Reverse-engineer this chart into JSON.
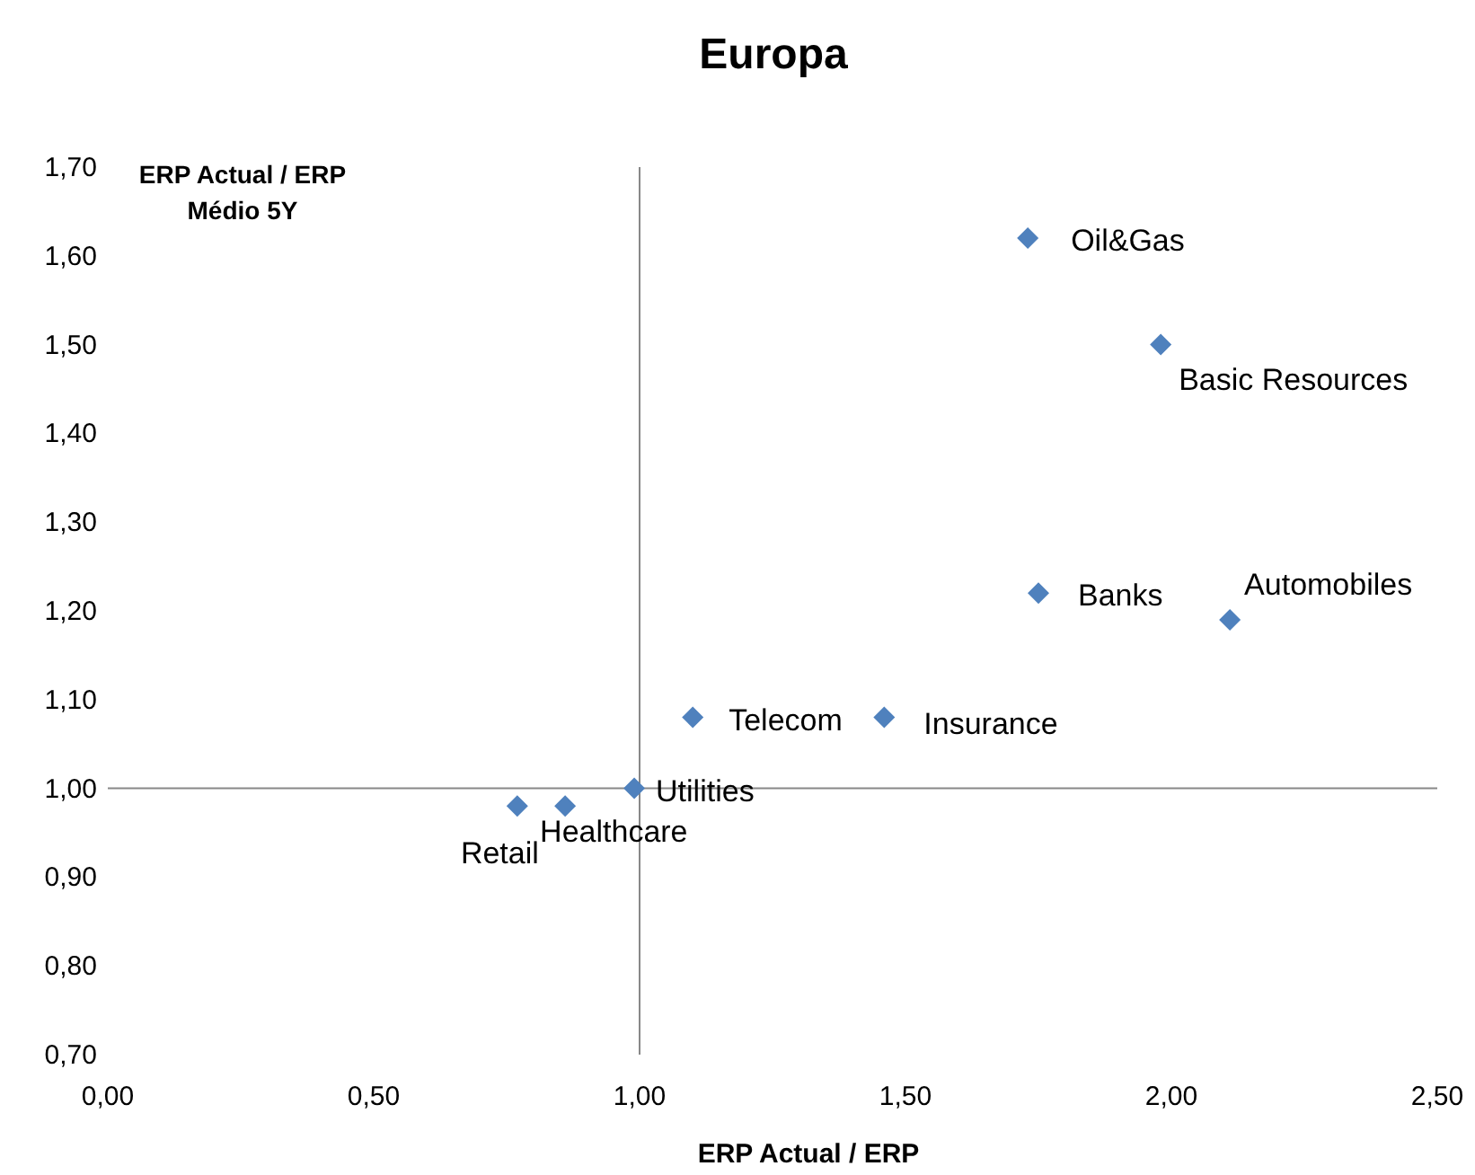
{
  "chart_data": {
    "type": "scatter",
    "title": "Europa",
    "xlabel": "ERP Actual / ERP",
    "ylabel": "ERP Actual / ERP Médio 5Y",
    "xlim": [
      0,
      2.5
    ],
    "ylim": [
      0.7,
      1.7
    ],
    "xticks": [
      {
        "value": 0,
        "label": "0,00"
      },
      {
        "value": 0.5,
        "label": "0,50"
      },
      {
        "value": 1,
        "label": "1,00"
      },
      {
        "value": 1.5,
        "label": "1,50"
      },
      {
        "value": 2,
        "label": "2,00"
      },
      {
        "value": 2.5,
        "label": "2,50"
      }
    ],
    "yticks": [
      {
        "value": 0.7,
        "label": "0,70"
      },
      {
        "value": 0.8,
        "label": "0,80"
      },
      {
        "value": 0.9,
        "label": "0,90"
      },
      {
        "value": 1,
        "label": "1,00"
      },
      {
        "value": 1.1,
        "label": "1,10"
      },
      {
        "value": 1.2,
        "label": "1,20"
      },
      {
        "value": 1.3,
        "label": "1,30"
      },
      {
        "value": 1.4,
        "label": "1,40"
      },
      {
        "value": 1.5,
        "label": "1,50"
      },
      {
        "value": 1.6,
        "label": "1,60"
      },
      {
        "value": 1.7,
        "label": "1,70"
      }
    ],
    "marker": "diamond",
    "series": [
      {
        "name": "Oil&Gas",
        "color": "#4f81bd",
        "x": [
          1.73
        ],
        "values": [
          1.62
        ]
      },
      {
        "name": "Basic Resources",
        "color": "#4f81bd",
        "x": [
          1.98
        ],
        "values": [
          1.5
        ]
      },
      {
        "name": "Banks",
        "color": "#4f81bd",
        "x": [
          1.75
        ],
        "values": [
          1.22
        ]
      },
      {
        "name": "Automobiles",
        "color": "#4f81bd",
        "x": [
          2.11
        ],
        "values": [
          1.19
        ]
      },
      {
        "name": "Telecom",
        "color": "#4f81bd",
        "x": [
          1.1
        ],
        "values": [
          1.08
        ]
      },
      {
        "name": "Insurance",
        "color": "#4f81bd",
        "x": [
          1.46
        ],
        "values": [
          1.08
        ]
      },
      {
        "name": "Utilities",
        "color": "#4f81bd",
        "x": [
          0.99
        ],
        "values": [
          1.0
        ]
      },
      {
        "name": "Healthcare",
        "color": "#4f81bd",
        "x": [
          0.86
        ],
        "values": [
          0.98
        ]
      },
      {
        "name": "Retail",
        "color": "#4f81bd",
        "x": [
          0.77
        ],
        "values": [
          0.98
        ]
      }
    ]
  }
}
